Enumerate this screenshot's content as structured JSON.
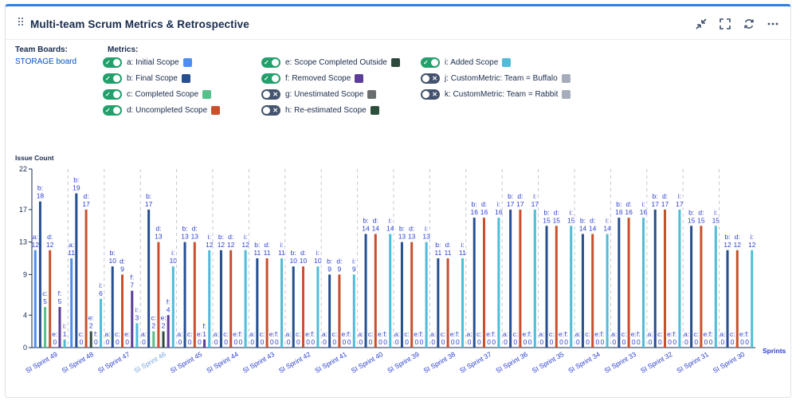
{
  "header": {
    "title": "Multi-team Scrum Metrics & Retrospective",
    "icons": [
      "collapse-icon",
      "fullscreen-icon",
      "refresh-icon",
      "more-icon"
    ]
  },
  "boards": {
    "label": "Team Boards:",
    "link": "STORAGE board"
  },
  "metrics": {
    "label": "Metrics:",
    "items": [
      {
        "label": "a: Initial Scope",
        "on": true,
        "color": "#4c8ff0"
      },
      {
        "label": "b: Final Scope",
        "on": true,
        "color": "#264f8f"
      },
      {
        "label": "c: Completed Scope",
        "on": true,
        "color": "#58c08a"
      },
      {
        "label": "d: Uncompleted Scope",
        "on": true,
        "color": "#c8502d"
      },
      {
        "label": "e: Scope Completed Outside",
        "on": true,
        "color": "#2e4a3c"
      },
      {
        "label": "f: Removed Scope",
        "on": true,
        "color": "#5c3d97"
      },
      {
        "label": "g: Unestimated Scope",
        "on": false,
        "color": "#6b6e6f"
      },
      {
        "label": "h: Re-estimated Scope",
        "on": false,
        "color": "#2f4f3d"
      },
      {
        "label": "i: Added Scope",
        "on": true,
        "color": "#4fbcd8"
      },
      {
        "label": "j: CustomMetric: Team = Buffalo",
        "on": false,
        "color": "#a5adba"
      },
      {
        "label": "k: CustomMetric: Team = Rabbit",
        "on": false,
        "color": "#a5adba"
      }
    ]
  },
  "chart_data": {
    "type": "bar",
    "ylabel": "Issue Count",
    "xlabel": "Sprints",
    "ylim": [
      0,
      22
    ],
    "yticks": [
      0,
      4,
      9,
      13,
      17,
      22
    ],
    "categories": [
      "SI Sprint 49",
      "SI Sprint 48",
      "SI Sprint 47",
      "SI Sprint 46",
      "SI Sprint 45",
      "SI Sprint 44",
      "SI Sprint 43",
      "SI Sprint 42",
      "SI Sprint 41",
      "SI Sprint 40",
      "SI Sprint 39",
      "SI Sprint 38",
      "SI Sprint 37",
      "SI Sprint 36",
      "SI Sprint 35",
      "SI Sprint 34",
      "SI Sprint 33",
      "SI Sprint 32",
      "SI Sprint 31",
      "SI Sprint 30"
    ],
    "highlighted_category": "SI Sprint 46",
    "series": [
      {
        "name": "a",
        "color": "#4c8ff0",
        "values": [
          12,
          11,
          0,
          0,
          0,
          0,
          0,
          0,
          0,
          0,
          0,
          0,
          0,
          0,
          0,
          0,
          0,
          0,
          0,
          0
        ]
      },
      {
        "name": "b",
        "color": "#264f8f",
        "values": [
          18,
          19,
          10,
          17,
          13,
          12,
          11,
          10,
          9,
          14,
          13,
          11,
          16,
          17,
          15,
          14,
          16,
          17,
          15,
          12
        ]
      },
      {
        "name": "c",
        "color": "#58c08a",
        "values": [
          5,
          0,
          0,
          2,
          0,
          0,
          0,
          0,
          0,
          0,
          0,
          0,
          0,
          0,
          0,
          0,
          0,
          0,
          0,
          0
        ]
      },
      {
        "name": "d",
        "color": "#c8502d",
        "values": [
          12,
          17,
          9,
          13,
          13,
          12,
          11,
          10,
          9,
          14,
          13,
          11,
          16,
          17,
          15,
          14,
          16,
          17,
          15,
          12
        ]
      },
      {
        "name": "e",
        "color": "#2e4a3c",
        "values": [
          0,
          2,
          0,
          2,
          0,
          0,
          0,
          0,
          0,
          0,
          0,
          0,
          0,
          0,
          0,
          0,
          0,
          0,
          0,
          0
        ]
      },
      {
        "name": "f",
        "color": "#5c3d97",
        "values": [
          5,
          0,
          7,
          4,
          1,
          0,
          0,
          0,
          0,
          0,
          0,
          0,
          0,
          0,
          0,
          0,
          0,
          0,
          0,
          0
        ]
      },
      {
        "name": "i",
        "color": "#4fbcd8",
        "values": [
          1,
          6,
          3,
          10,
          12,
          12,
          11,
          10,
          9,
          14,
          13,
          11,
          16,
          17,
          15,
          14,
          16,
          17,
          15,
          12
        ]
      }
    ]
  }
}
